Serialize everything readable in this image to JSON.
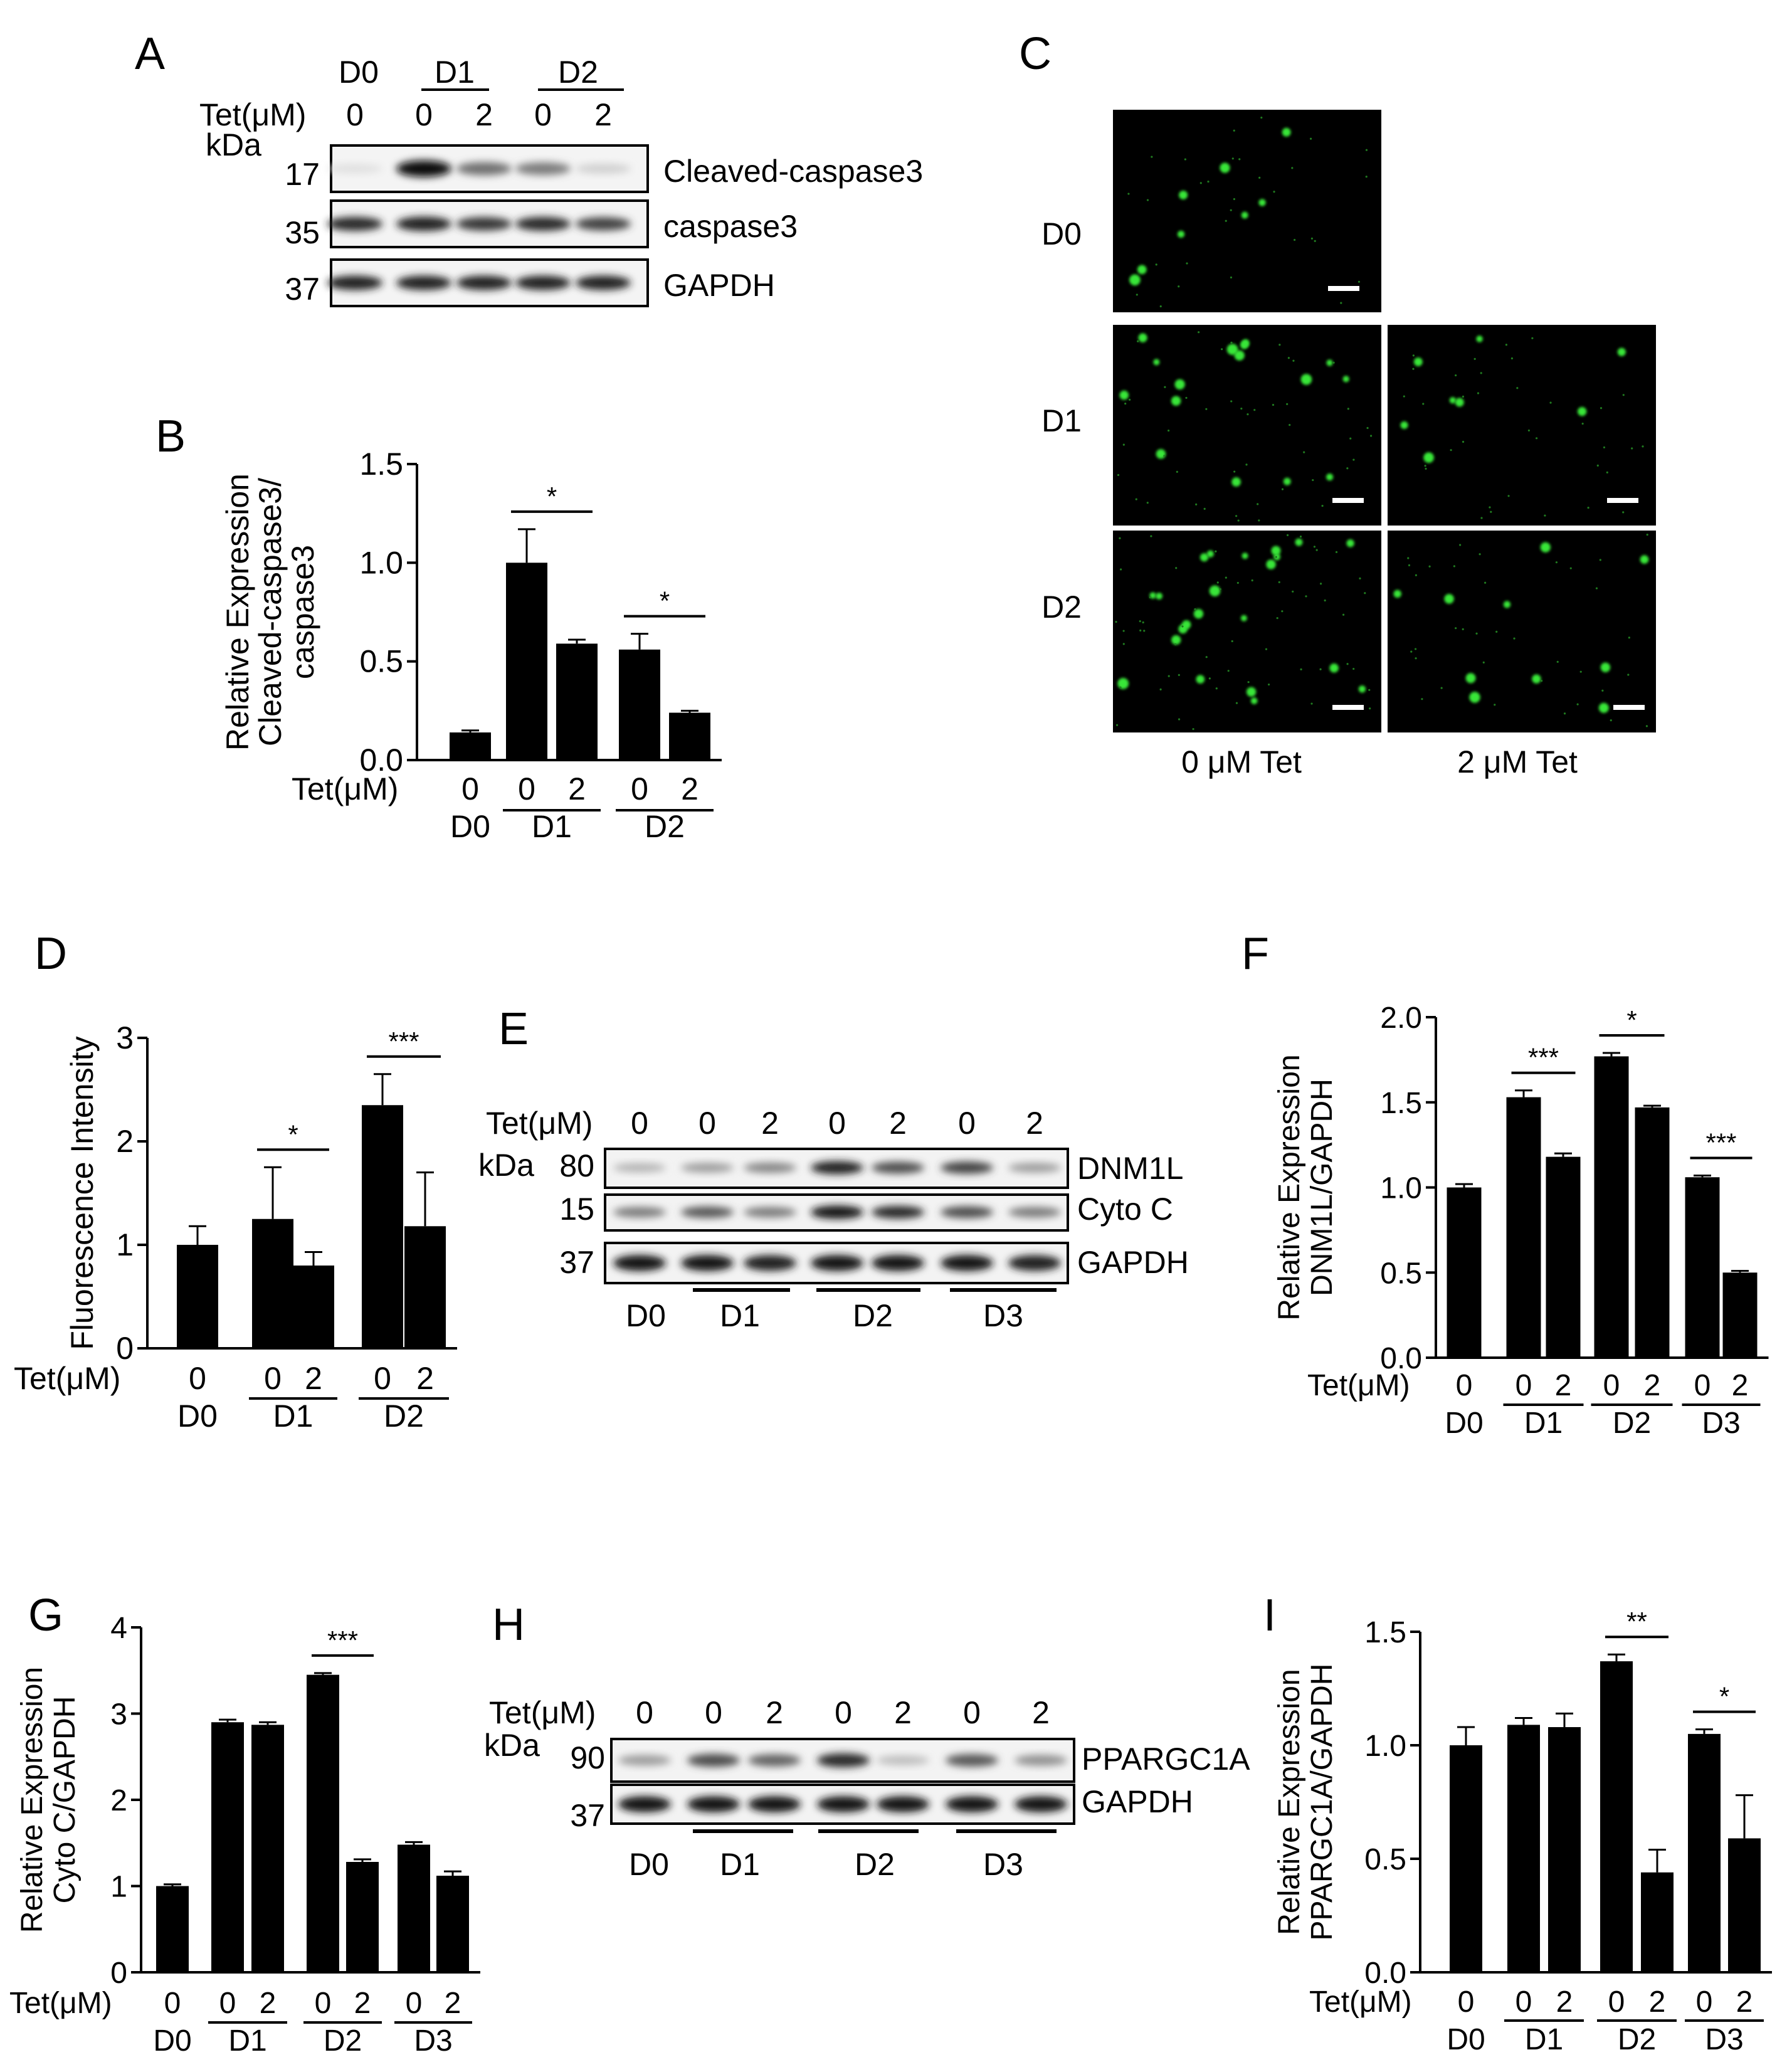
{
  "panels": {
    "A": "A",
    "B": "B",
    "C": "C",
    "D": "D",
    "E": "E",
    "F": "F",
    "G": "G",
    "H": "H",
    "I": "I"
  },
  "common": {
    "tet_label": "Tet(μM)",
    "kda_label": "kDa"
  },
  "western_A": {
    "day_headers": [
      "D0",
      "D1",
      "D2"
    ],
    "tet_values": [
      "0",
      "0",
      "2",
      "0",
      "2"
    ],
    "bands": [
      {
        "kda": "17",
        "name": "Cleaved-caspase3",
        "intensity": [
          0.05,
          1.0,
          0.55,
          0.5,
          0.12
        ]
      },
      {
        "kda": "35",
        "name": "caspase3",
        "intensity": [
          0.85,
          0.9,
          0.8,
          0.85,
          0.75
        ]
      },
      {
        "kda": "37",
        "name": "GAPDH",
        "intensity": [
          0.9,
          0.9,
          0.9,
          0.9,
          0.9
        ]
      }
    ]
  },
  "micrograph_C": {
    "row_labels": [
      "D0",
      "D1",
      "D2"
    ],
    "column_labels": [
      "0 μM Tet",
      "2 μM  Tet"
    ],
    "colors": {
      "background": "#000000",
      "signal": "#39e639"
    }
  },
  "western_E": {
    "tet_values": [
      "0",
      "0",
      "2",
      "0",
      "2",
      "0",
      "2"
    ],
    "day_labels": [
      "D0",
      "D1",
      "D2",
      "D3"
    ],
    "bands": [
      {
        "kda": "80",
        "name": "DNM1L",
        "intensity": [
          0.25,
          0.35,
          0.45,
          0.9,
          0.7,
          0.75,
          0.35
        ]
      },
      {
        "kda": "15",
        "name": "Cyto C",
        "intensity": [
          0.5,
          0.65,
          0.5,
          0.95,
          0.85,
          0.7,
          0.5
        ]
      },
      {
        "kda": "37",
        "name": "GAPDH",
        "intensity": [
          0.95,
          0.95,
          0.9,
          0.95,
          0.95,
          0.95,
          0.9
        ]
      }
    ]
  },
  "western_H": {
    "tet_values": [
      "0",
      "0",
      "2",
      "0",
      "2",
      "0",
      "2"
    ],
    "day_labels": [
      "D0",
      "D1",
      "D2",
      "D3"
    ],
    "bands": [
      {
        "kda": "90",
        "name": "PPARGC1A",
        "intensity": [
          0.35,
          0.7,
          0.6,
          0.85,
          0.2,
          0.65,
          0.4
        ]
      },
      {
        "kda": "37",
        "name": "GAPDH",
        "intensity": [
          0.95,
          0.95,
          0.95,
          0.95,
          0.95,
          0.95,
          0.95
        ]
      }
    ]
  },
  "chart_data": [
    {
      "panel": "B",
      "type": "bar",
      "ylabel": [
        "Relative  Expression",
        "Cleaved-caspase3/",
        "caspase3"
      ],
      "ylim": [
        0,
        1.5
      ],
      "yticks": [
        "0.0",
        "0.5",
        "1.0",
        "1.5"
      ],
      "tet_values": [
        "0",
        "0",
        "2",
        "0",
        "2"
      ],
      "groups": [
        "D0",
        "D1",
        "D2"
      ],
      "values": [
        0.14,
        1.0,
        0.59,
        0.56,
        0.24
      ],
      "errors": [
        0.01,
        0.17,
        0.02,
        0.08,
        0.01
      ],
      "significance": [
        {
          "bars": [
            1,
            2
          ],
          "label": "*"
        },
        {
          "bars": [
            3,
            4
          ],
          "label": "*"
        }
      ]
    },
    {
      "panel": "D",
      "type": "bar",
      "ylabel": [
        "Fluorescence Intensity"
      ],
      "ylim": [
        0,
        3
      ],
      "yticks": [
        "0",
        "1",
        "2",
        "3"
      ],
      "tet_values": [
        "0",
        "0",
        "2",
        "0",
        "2"
      ],
      "groups": [
        "D0",
        "D1",
        "D2"
      ],
      "values": [
        1.0,
        1.25,
        0.8,
        2.35,
        1.18
      ],
      "errors": [
        0.18,
        0.5,
        0.13,
        0.3,
        0.52
      ],
      "significance": [
        {
          "bars": [
            1,
            2
          ],
          "label": "*"
        },
        {
          "bars": [
            3,
            4
          ],
          "label": "***"
        }
      ]
    },
    {
      "panel": "F",
      "type": "bar",
      "ylabel": [
        "Relative  Expression",
        "DNM1L/GAPDH"
      ],
      "ylim": [
        0,
        2.0
      ],
      "yticks": [
        "0.0",
        "0.5",
        "1.0",
        "1.5",
        "2.0"
      ],
      "tet_values": [
        "0",
        "0",
        "2",
        "0",
        "2",
        "0",
        "2"
      ],
      "groups": [
        "D0",
        "D1",
        "D2",
        "D3"
      ],
      "values": [
        1.0,
        1.53,
        1.18,
        1.77,
        1.47,
        1.06,
        0.5
      ],
      "errors": [
        0.02,
        0.04,
        0.02,
        0.02,
        0.01,
        0.01,
        0.01
      ],
      "significance": [
        {
          "bars": [
            1,
            2
          ],
          "label": "***"
        },
        {
          "bars": [
            3,
            4
          ],
          "label": "*"
        },
        {
          "bars": [
            5,
            6
          ],
          "label": "***"
        }
      ]
    },
    {
      "panel": "G",
      "type": "bar",
      "ylabel": [
        "Relative Expression",
        "Cyto C/GAPDH"
      ],
      "ylim": [
        0,
        4
      ],
      "yticks": [
        "0",
        "1",
        "2",
        "3",
        "4"
      ],
      "tet_values": [
        "0",
        "0",
        "2",
        "0",
        "2",
        "0",
        "2"
      ],
      "groups": [
        "D0",
        "D1",
        "D2",
        "D3"
      ],
      "values": [
        1.0,
        2.9,
        2.87,
        3.45,
        1.28,
        1.48,
        1.12
      ],
      "errors": [
        0.02,
        0.03,
        0.03,
        0.02,
        0.03,
        0.03,
        0.05
      ],
      "significance": [
        {
          "bars": [
            3,
            4
          ],
          "label": "***"
        }
      ]
    },
    {
      "panel": "I",
      "type": "bar",
      "ylabel": [
        "Relative Expression",
        "PPARGC1A/GAPDH"
      ],
      "ylim": [
        0,
        1.5
      ],
      "yticks": [
        "0.0",
        "0.5",
        "1.0",
        "1.5"
      ],
      "tet_values": [
        "0",
        "0",
        "2",
        "0",
        "2",
        "0",
        "2"
      ],
      "groups": [
        "D0",
        "D1",
        "D2",
        "D3"
      ],
      "values": [
        1.0,
        1.09,
        1.08,
        1.37,
        0.44,
        1.05,
        0.59
      ],
      "errors": [
        0.08,
        0.03,
        0.06,
        0.03,
        0.1,
        0.02,
        0.19
      ],
      "significance": [
        {
          "bars": [
            3,
            4
          ],
          "label": "**"
        },
        {
          "bars": [
            5,
            6
          ],
          "label": "*"
        }
      ]
    }
  ]
}
